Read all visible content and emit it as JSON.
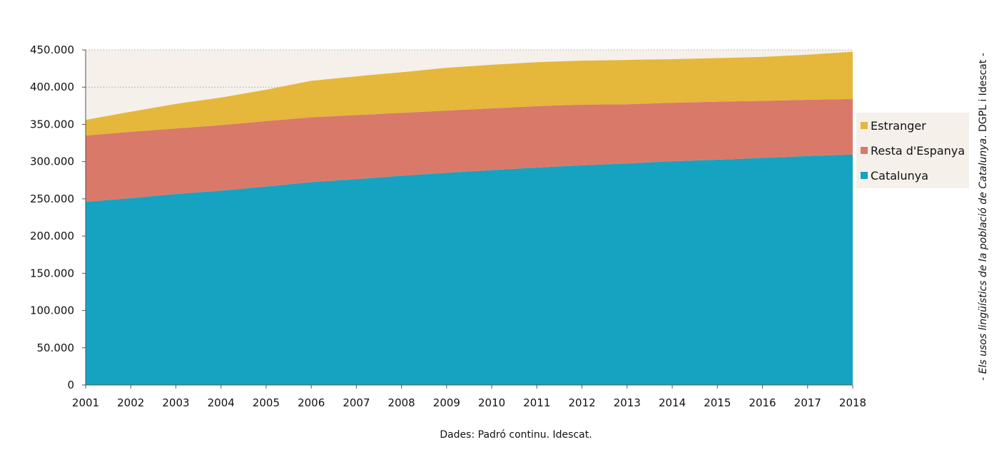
{
  "chart_data": {
    "type": "area",
    "stacked": true,
    "x": [
      "2001",
      "2002",
      "2003",
      "2004",
      "2005",
      "2006",
      "2007",
      "2008",
      "2009",
      "2010",
      "2011",
      "2012",
      "2013",
      "2014",
      "2015",
      "2016",
      "2017",
      "2018"
    ],
    "series": [
      {
        "name": "Catalunya",
        "color": "#15a3c1",
        "values": [
          246000,
          251000,
          256500,
          261000,
          266500,
          272500,
          276500,
          281000,
          285000,
          288500,
          292000,
          295000,
          297500,
          300500,
          302500,
          305000,
          307500,
          309500
        ]
      },
      {
        "name": "Resta d'Espanya",
        "color": "#d9796a",
        "values": [
          89000,
          89000,
          88000,
          88000,
          88000,
          87000,
          86000,
          84500,
          83500,
          83000,
          82500,
          81500,
          79500,
          78500,
          78000,
          76500,
          75500,
          74500
        ]
      },
      {
        "name": "Estranger",
        "color": "#e5b73b",
        "values": [
          21000,
          27000,
          33000,
          37000,
          42000,
          49000,
          52000,
          54500,
          57500,
          58500,
          59000,
          59000,
          59500,
          58500,
          58500,
          59000,
          60500,
          63500
        ]
      }
    ],
    "ylim": [
      0,
      450000
    ],
    "yticks": [
      0,
      50000,
      100000,
      150000,
      200000,
      250000,
      300000,
      350000,
      400000,
      450000
    ],
    "ytick_labels": [
      "0",
      "50.000",
      "100.000",
      "150.000",
      "200.000",
      "250.000",
      "300.000",
      "350.000",
      "400.000",
      "450.000"
    ],
    "grid": true,
    "legend_position": "right",
    "legend_order": [
      "Estranger",
      "Resta d'Espanya",
      "Catalunya"
    ],
    "plot_background": "#f5f0ea",
    "legend_background": "#f5f0ea",
    "source_note": "Dades: Padró continu. Idescat.",
    "side_note_prefix": "- Els usos lingüístics de la població de Catalunya",
    "side_note_suffix": ". DGPL i Idescat -"
  }
}
